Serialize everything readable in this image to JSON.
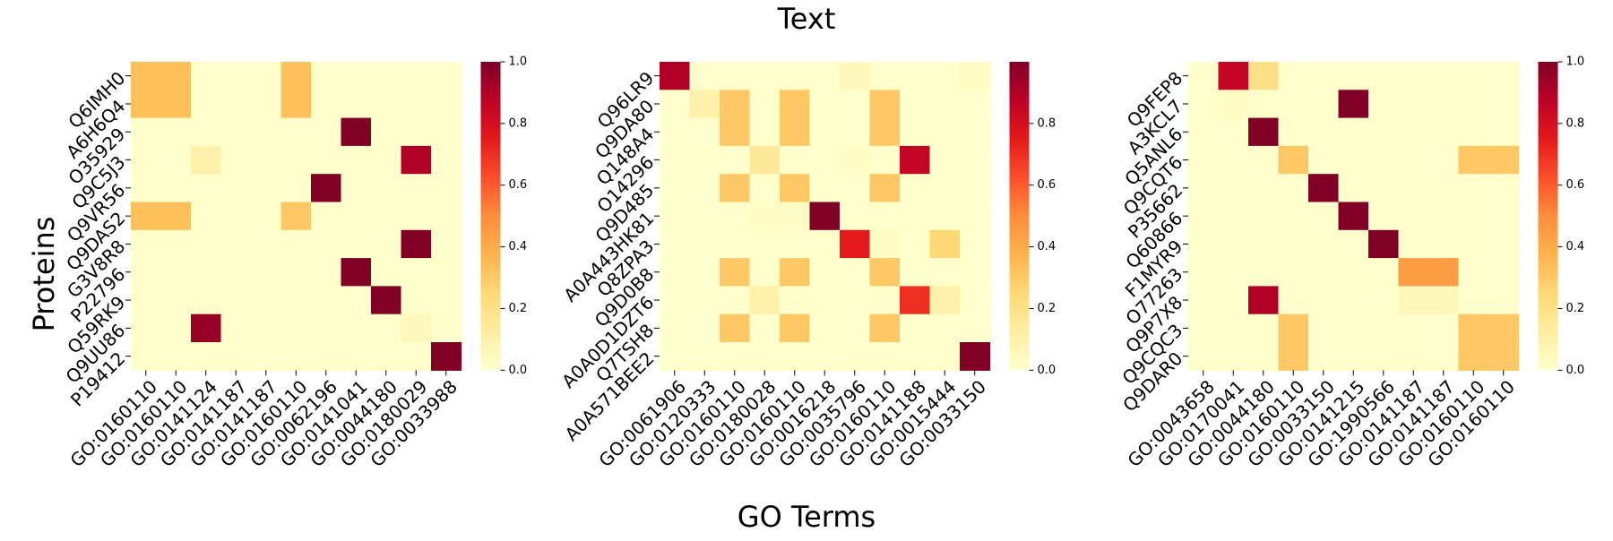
{
  "figure": {
    "title": "Text",
    "xlabel": "GO Terms",
    "ylabel": "Proteins"
  },
  "colormap": {
    "name": "YlOrRd",
    "stops": [
      "#ffffcc",
      "#ffeda0",
      "#fed976",
      "#feb24c",
      "#fd8d3c",
      "#fc4e2a",
      "#e31a1c",
      "#bd0026",
      "#800026"
    ]
  },
  "chart_data": [
    {
      "type": "heatmap",
      "rows": [
        "Q6IMH0",
        "A6H6Q4",
        "O35929",
        "Q9C5J3",
        "Q9VR56",
        "Q9DAS2",
        "G3V8R8",
        "P22796",
        "Q59RK9",
        "Q9UU86",
        "P19412"
      ],
      "columns": [
        "GO:0160110",
        "GO:0160110",
        "GO:0141124",
        "GO:0141187",
        "GO:0141187",
        "GO:0160110",
        "GO:0062196",
        "GO:0141041",
        "GO:0044180",
        "GO:0180029",
        "GO:0033988"
      ],
      "values": [
        [
          0.33,
          0.33,
          0,
          0,
          0,
          0.33,
          0,
          0,
          0,
          0,
          0
        ],
        [
          0.33,
          0.33,
          0,
          0,
          0,
          0.33,
          0,
          0,
          0,
          0,
          0
        ],
        [
          0,
          0,
          0,
          0,
          0,
          0,
          0,
          1.0,
          0,
          0,
          0
        ],
        [
          0,
          0,
          0.1,
          0,
          0,
          0,
          0,
          0,
          0,
          0.9,
          0
        ],
        [
          0,
          0,
          0,
          0,
          0,
          0,
          1.0,
          0,
          0,
          0,
          0
        ],
        [
          0.33,
          0.33,
          0,
          0,
          0,
          0.3,
          0,
          0,
          0,
          0,
          0
        ],
        [
          0,
          0,
          0,
          0,
          0,
          0,
          0,
          0,
          0,
          1.0,
          0
        ],
        [
          0,
          0,
          0,
          0,
          0,
          0,
          0,
          1.0,
          0,
          0,
          0
        ],
        [
          0,
          0,
          0,
          0,
          0,
          0,
          0,
          0,
          1.0,
          0,
          0
        ],
        [
          0,
          0,
          0.95,
          0,
          0,
          0,
          0,
          0,
          0,
          0.05,
          0
        ],
        [
          0,
          0,
          0,
          0,
          0,
          0,
          0,
          0,
          0,
          0,
          1.0
        ]
      ],
      "vmin": 0,
      "vmax": 1.0,
      "colorbar_ticks": [
        0.0,
        0.2,
        0.4,
        0.6,
        0.8,
        1.0
      ],
      "colorbar_tick_labels": [
        "0.0",
        "0.2",
        "0.4",
        "0.6",
        "0.8",
        "1.0"
      ]
    },
    {
      "type": "heatmap",
      "rows": [
        "Q96LR9",
        "Q9DA80",
        "Q148A4",
        "O14296",
        "Q9D485",
        "A0A443HK81",
        "Q8ZPA3",
        "Q9D0B8",
        "A0A0D1DZT6",
        "Q7TSH8",
        "A0A571BEE2"
      ],
      "columns": [
        "GO:0061906",
        "GO:0120333",
        "GO:0160110",
        "GO:0180028",
        "GO:0160110",
        "GO:0016218",
        "GO:0035796",
        "GO:0160110",
        "GO:0141188",
        "GO:0015444",
        "GO:0033150"
      ],
      "values": [
        [
          0.9,
          0,
          0,
          0,
          0,
          0,
          0.05,
          0,
          0,
          0,
          0.03
        ],
        [
          0,
          0.1,
          0.3,
          0,
          0.3,
          0,
          0,
          0.3,
          0,
          0,
          0
        ],
        [
          0,
          0,
          0.3,
          0,
          0.3,
          0,
          0,
          0.3,
          0,
          0,
          0
        ],
        [
          0,
          0,
          0,
          0.15,
          0,
          0,
          0.02,
          0,
          0.85,
          0,
          0
        ],
        [
          0,
          0,
          0.3,
          0,
          0.3,
          0,
          0,
          0.3,
          0,
          0,
          0
        ],
        [
          0,
          0,
          0,
          0.02,
          0.02,
          1.0,
          0,
          0,
          0,
          0,
          0
        ],
        [
          0,
          0,
          0,
          0,
          0,
          0,
          0.75,
          0.02,
          0,
          0.25,
          0
        ],
        [
          0,
          0,
          0.3,
          0,
          0.3,
          0,
          0,
          0.3,
          0,
          0,
          0
        ],
        [
          0,
          0,
          0,
          0.1,
          0,
          0,
          0,
          0,
          0.7,
          0.1,
          0
        ],
        [
          0,
          0,
          0.3,
          0,
          0.3,
          0,
          0,
          0.3,
          0,
          0,
          0
        ],
        [
          0,
          0,
          0,
          0,
          0,
          0,
          0,
          0,
          0,
          0,
          1.0
        ]
      ],
      "vmin": 0,
      "vmax": 1.0,
      "colorbar_ticks": [
        0.0,
        0.2,
        0.4,
        0.6,
        0.8
      ],
      "colorbar_tick_labels": [
        "0.0",
        "0.2",
        "0.4",
        "0.6",
        "0.8"
      ]
    },
    {
      "type": "heatmap",
      "rows": [
        "Q9FEP8",
        "A3KCL7",
        "Q5ANL6",
        "Q9CQT6",
        "P35662",
        "Q60866",
        "F1MYR9",
        "O77263",
        "Q9P7X8",
        "Q9CQC3",
        "Q9DAR0"
      ],
      "columns": [
        "GO:0043658",
        "GO:0170041",
        "GO:0044180",
        "GO:0160110",
        "GO:0033150",
        "GO:0141215",
        "GO:1990566",
        "GO:0141187",
        "GO:0141187",
        "GO:0160110",
        "GO:0160110"
      ],
      "values": [
        [
          0,
          0.85,
          0.2,
          0,
          0,
          0,
          0,
          0,
          0,
          0,
          0
        ],
        [
          0,
          0.03,
          0,
          0,
          0,
          1.0,
          0,
          0,
          0,
          0,
          0
        ],
        [
          0,
          0,
          1.0,
          0,
          0,
          0,
          0,
          0,
          0,
          0,
          0
        ],
        [
          0,
          0,
          0,
          0.3,
          0,
          0,
          0,
          0,
          0,
          0.3,
          0.3
        ],
        [
          0,
          0,
          0,
          0,
          1.0,
          0,
          0,
          0,
          0,
          0,
          0
        ],
        [
          0,
          0,
          0,
          0,
          0,
          1.0,
          0,
          0,
          0,
          0,
          0
        ],
        [
          0,
          0,
          0,
          0,
          0,
          0,
          1.0,
          0,
          0,
          0,
          0
        ],
        [
          0,
          0,
          0,
          0,
          0,
          0,
          0,
          0.45,
          0.45,
          0,
          0
        ],
        [
          0,
          0,
          0.9,
          0,
          0,
          0,
          0,
          0.05,
          0.05,
          0,
          0
        ],
        [
          0,
          0,
          0,
          0.3,
          0,
          0,
          0,
          0,
          0,
          0.3,
          0.3
        ],
        [
          0,
          0,
          0,
          0.3,
          0,
          0,
          0,
          0,
          0,
          0.3,
          0.3
        ]
      ],
      "vmin": 0,
      "vmax": 1.0,
      "colorbar_ticks": [
        0.0,
        0.2,
        0.4,
        0.6,
        0.8,
        1.0
      ],
      "colorbar_tick_labels": [
        "0.0",
        "0.2",
        "0.4",
        "0.6",
        "0.8",
        "1.0"
      ]
    }
  ]
}
